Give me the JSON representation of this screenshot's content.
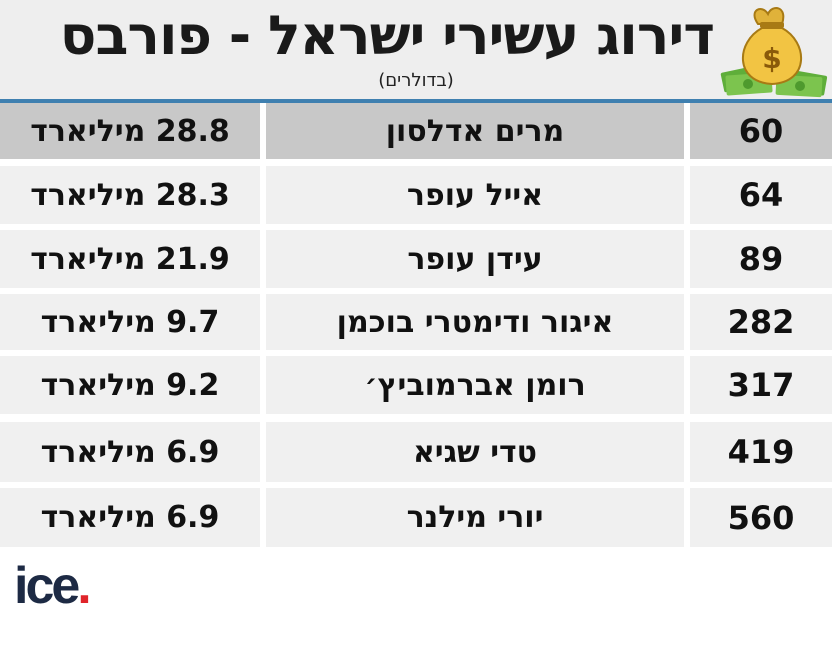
{
  "header": {
    "title": "דירוג עשירי ישראל - פורבס",
    "subtitle": "(בדולרים)",
    "icon": "money-bag-icon"
  },
  "colors": {
    "accent_line": "#3f80b0",
    "highlight_row": "#c8c8c8",
    "row_bg": "#f0f0f0",
    "logo_dot": "#e0242a"
  },
  "rows": [
    {
      "rank": "60",
      "name": "מרים אדלסון",
      "amount": "28.8 מיליארד"
    },
    {
      "rank": "64",
      "name": "אייל עופר",
      "amount": "28.3 מיליארד"
    },
    {
      "rank": "89",
      "name": "עידן עופר",
      "amount": "21.9 מיליארד"
    },
    {
      "rank": "282",
      "name": "איגור ודימטרי בוכמן",
      "amount": "9.7 מיליארד"
    },
    {
      "rank": "317",
      "name": "רומן אברמוביץ׳",
      "amount": "9.2 מיליארד"
    },
    {
      "rank": "419",
      "name": "טדי שגיא",
      "amount": "6.9 מיליארד"
    },
    {
      "rank": "560",
      "name": "יורי מילנר",
      "amount": "6.9 מיליארד"
    }
  ],
  "logo": {
    "text": "ice",
    "dot": "."
  }
}
